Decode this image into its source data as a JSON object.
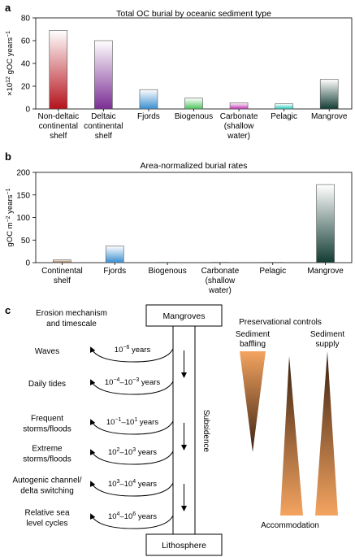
{
  "chart_data": [
    {
      "panel": "a",
      "type": "bar",
      "title": "Total OC burial by oceanic sediment type",
      "ylabel_base": "×10",
      "ylabel_exp": "12",
      "ylabel_rest": " gOC years",
      "ylabel_exp2": "−1",
      "ylim": [
        0,
        80
      ],
      "yticks": [
        0,
        20,
        40,
        60,
        80
      ],
      "grid": false,
      "categories": [
        [
          "Non-deltaic",
          "continental",
          "shelf"
        ],
        [
          "Deltaic",
          "continental",
          "shelf"
        ],
        [
          "Fjords"
        ],
        [
          "Biogenous"
        ],
        [
          "Carbonate",
          "(shallow",
          "water)"
        ],
        [
          "Pelagic"
        ],
        [
          "Mangrove"
        ]
      ],
      "values": [
        69,
        60,
        17,
        9.5,
        5.5,
        4.5,
        26
      ],
      "colors": [
        "#b5121b",
        "#7b2d94",
        "#3a8fd0",
        "#4cc35a",
        "#c232b0",
        "#22c9ba",
        "#123c33"
      ]
    },
    {
      "panel": "b",
      "type": "bar",
      "title": "Area-normalized burial rates",
      "ylabel_base": "gOC m",
      "ylabel_exp": "−2",
      "ylabel_rest": " years",
      "ylabel_exp2": "−1",
      "ylim": [
        0,
        200
      ],
      "yticks": [
        0,
        50,
        100,
        150,
        200
      ],
      "grid": false,
      "categories": [
        [
          "Continental",
          "shelf"
        ],
        [
          "Fjords"
        ],
        [
          "Biogenous"
        ],
        [
          "Carbonate",
          "(shallow",
          "water)"
        ],
        [
          "Pelagic"
        ],
        [
          "Mangrove"
        ]
      ],
      "values": [
        6,
        37,
        1,
        1,
        1,
        173
      ],
      "colors": [
        "#8a5a32",
        "#3a8fd0",
        "#4cc35a",
        "#c232b0",
        "#22c9ba",
        "#123c33"
      ]
    }
  ],
  "panel_labels": {
    "a": "a",
    "b": "b",
    "c": "c"
  },
  "diagram": {
    "erosion_header": [
      "Erosion mechanism",
      "and timescale"
    ],
    "top_box": "Mangroves",
    "bottom_box": "Lithosphere",
    "subsidence_label": "Subsidence",
    "mechanisms": [
      {
        "label": [
          "Waves"
        ],
        "timescale": "10",
        "exp": "−6",
        "tail": " years"
      },
      {
        "label": [
          "Daily tides"
        ],
        "timescale": "10",
        "exp": "−4",
        "mid": "–10",
        "exp2": "−3",
        "tail": " years"
      },
      {
        "label": [
          "Frequent",
          "storms/floods"
        ],
        "timescale": "10",
        "exp": "−1",
        "mid": "–10",
        "exp2": "1",
        "tail": " years"
      },
      {
        "label": [
          "Extreme",
          "storms/floods"
        ],
        "timescale": "10",
        "exp": "2",
        "mid": "–10",
        "exp2": "3",
        "tail": " years"
      },
      {
        "label": [
          "Autogenic channel/",
          "delta switching"
        ],
        "timescale": "10",
        "exp": "3",
        "mid": "–10",
        "exp2": "4",
        "tail": " years"
      },
      {
        "label": [
          "Relative sea",
          "level cycles"
        ],
        "timescale": "10",
        "exp": "4",
        "mid": "–10",
        "exp2": "6",
        "tail": " years"
      }
    ],
    "preservation_title": "Preservational controls",
    "sediment_baffling": [
      "Sediment",
      "baffling"
    ],
    "sediment_supply": [
      "Sediment",
      "supply"
    ],
    "accommodation": "Accommodation",
    "colors": {
      "orange": "#f4a460",
      "dark": "#3a2010"
    }
  }
}
